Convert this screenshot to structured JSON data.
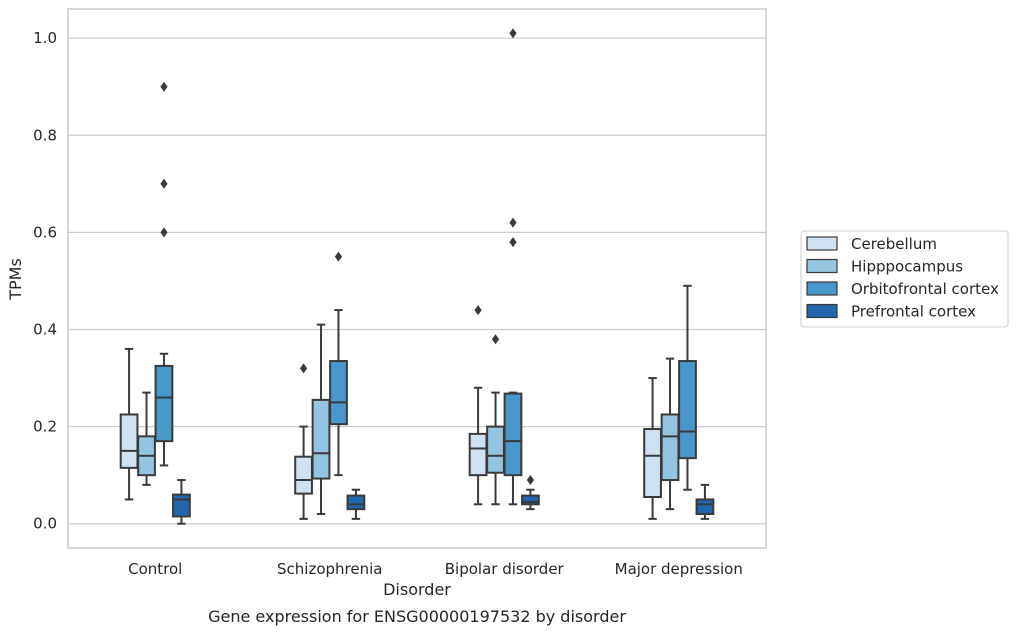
{
  "chart_data": {
    "type": "box",
    "caption": "Gene expression for ENSG00000197532 by disorder",
    "xlabel": "Disorder",
    "ylabel": "TPMs",
    "ylim": [
      -0.05,
      1.06
    ],
    "yticks": [
      0.0,
      0.2,
      0.4,
      0.6,
      0.8,
      1.0
    ],
    "ytick_labels": [
      "0.0",
      "0.2",
      "0.4",
      "0.6",
      "0.8",
      "1.0"
    ],
    "categories": [
      "Control",
      "Schizophrenia",
      "Bipolar disorder",
      "Major depression"
    ],
    "grid": "horizontal",
    "legend_position": "right",
    "colors": {
      "Cerebellum": "#d0e1f2",
      "Hipppocampus": "#94c4df",
      "Orbitofrontal cortex": "#4a98c9",
      "Prefrontal cortex": "#2366ad",
      "gridline": "#cccccc",
      "frame": "#cccccc",
      "edge": "#3a3a3a"
    },
    "series": [
      {
        "name": "Cerebellum",
        "boxes": [
          {
            "whislo": 0.05,
            "q1": 0.115,
            "med": 0.15,
            "q3": 0.225,
            "whishi": 0.36,
            "fliers": []
          },
          {
            "whislo": 0.01,
            "q1": 0.062,
            "med": 0.09,
            "q3": 0.138,
            "whishi": 0.2,
            "fliers": [
              0.32
            ]
          },
          {
            "whislo": 0.04,
            "q1": 0.1,
            "med": 0.155,
            "q3": 0.185,
            "whishi": 0.28,
            "fliers": [
              0.44
            ]
          },
          {
            "whislo": 0.01,
            "q1": 0.055,
            "med": 0.14,
            "q3": 0.195,
            "whishi": 0.3,
            "fliers": []
          }
        ]
      },
      {
        "name": "Hipppocampus",
        "boxes": [
          {
            "whislo": 0.08,
            "q1": 0.1,
            "med": 0.14,
            "q3": 0.18,
            "whishi": 0.27,
            "fliers": []
          },
          {
            "whislo": 0.02,
            "q1": 0.093,
            "med": 0.145,
            "q3": 0.255,
            "whishi": 0.41,
            "fliers": []
          },
          {
            "whislo": 0.04,
            "q1": 0.105,
            "med": 0.14,
            "q3": 0.2,
            "whishi": 0.27,
            "fliers": [
              0.38
            ]
          },
          {
            "whislo": 0.03,
            "q1": 0.09,
            "med": 0.18,
            "q3": 0.225,
            "whishi": 0.34,
            "fliers": []
          }
        ]
      },
      {
        "name": "Orbitofrontal cortex",
        "boxes": [
          {
            "whislo": 0.12,
            "q1": 0.17,
            "med": 0.26,
            "q3": 0.325,
            "whishi": 0.35,
            "fliers": [
              0.6,
              0.7,
              0.9
            ]
          },
          {
            "whislo": 0.1,
            "q1": 0.205,
            "med": 0.25,
            "q3": 0.335,
            "whishi": 0.44,
            "fliers": [
              0.55
            ]
          },
          {
            "whislo": 0.04,
            "q1": 0.1,
            "med": 0.17,
            "q3": 0.268,
            "whishi": 0.27,
            "fliers": [
              0.58,
              0.62,
              1.01
            ]
          },
          {
            "whislo": 0.07,
            "q1": 0.135,
            "med": 0.19,
            "q3": 0.335,
            "whishi": 0.49,
            "fliers": []
          }
        ]
      },
      {
        "name": "Prefrontal cortex",
        "boxes": [
          {
            "whislo": 0.0,
            "q1": 0.015,
            "med": 0.05,
            "q3": 0.06,
            "whishi": 0.09,
            "fliers": []
          },
          {
            "whislo": 0.01,
            "q1": 0.03,
            "med": 0.04,
            "q3": 0.058,
            "whishi": 0.07,
            "fliers": []
          },
          {
            "whislo": 0.03,
            "q1": 0.04,
            "med": 0.045,
            "q3": 0.058,
            "whishi": 0.07,
            "fliers": [
              0.09
            ]
          },
          {
            "whislo": 0.01,
            "q1": 0.02,
            "med": 0.04,
            "q3": 0.05,
            "whishi": 0.08,
            "fliers": []
          }
        ]
      }
    ]
  }
}
